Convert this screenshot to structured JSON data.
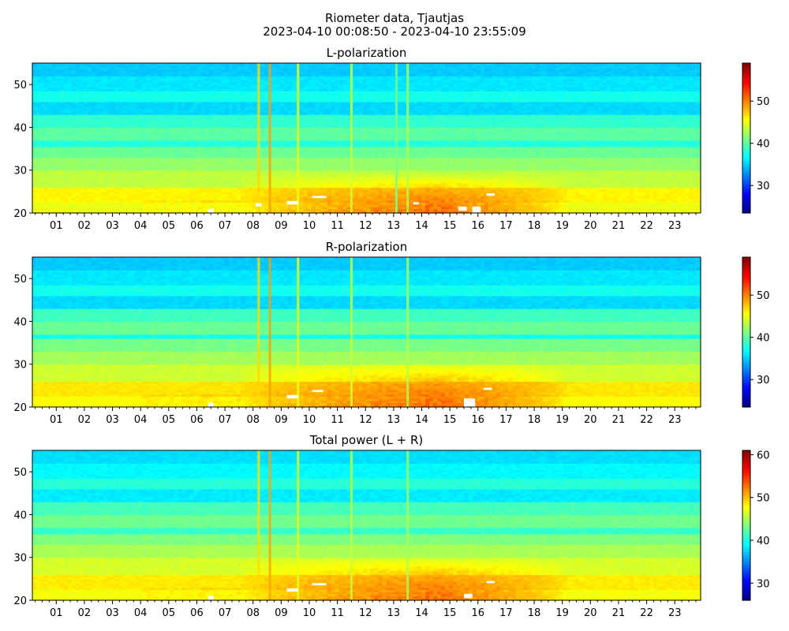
{
  "title": {
    "line1": "Riometer data, Tjautjas",
    "line2": "2023-04-10 00:08:50 - 2023-04-10 23:55:09"
  },
  "colormap": "jet",
  "chart_data": [
    {
      "type": "heatmap",
      "title": "L-polarization",
      "xlabel": "",
      "ylabel": "",
      "x_range_hours": [
        0.15,
        23.92
      ],
      "x_ticks": [
        "01",
        "02",
        "03",
        "04",
        "05",
        "06",
        "07",
        "08",
        "09",
        "10",
        "11",
        "12",
        "13",
        "14",
        "15",
        "16",
        "17",
        "18",
        "19",
        "20",
        "21",
        "22",
        "23"
      ],
      "ylim": [
        20,
        55
      ],
      "y_ticks": [
        20,
        30,
        40,
        50
      ],
      "colorbar": {
        "range": [
          23.5,
          59
        ],
        "ticks": [
          30,
          40,
          50
        ]
      },
      "band_levels": [
        {
          "y_from": 20,
          "y_to": 22.5,
          "value": 45
        },
        {
          "y_from": 22.5,
          "y_to": 26,
          "value": 46
        },
        {
          "y_from": 26,
          "y_to": 30,
          "value": 43.5
        },
        {
          "y_from": 30,
          "y_to": 33,
          "value": 42
        },
        {
          "y_from": 33,
          "y_to": 35.5,
          "value": 40.5
        },
        {
          "y_from": 35.5,
          "y_to": 37,
          "value": 38
        },
        {
          "y_from": 37,
          "y_to": 40,
          "value": 40
        },
        {
          "y_from": 40,
          "y_to": 43,
          "value": 38.5
        },
        {
          "y_from": 43,
          "y_to": 46,
          "value": 35.5
        },
        {
          "y_from": 46,
          "y_to": 48.5,
          "value": 37.5
        },
        {
          "y_from": 48.5,
          "y_to": 52,
          "value": 36
        },
        {
          "y_from": 52,
          "y_to": 55,
          "value": 35
        }
      ],
      "enhancement": {
        "start_h": 7.5,
        "peak_h": 14.5,
        "end_h": 19.2,
        "y_top": 29,
        "peak_value": 51.5
      },
      "spikes": [
        {
          "t": 8.2,
          "value": 47
        },
        {
          "t": 8.6,
          "value": 49
        },
        {
          "t": 9.6,
          "value": 45
        },
        {
          "t": 11.5,
          "value": 44
        },
        {
          "t": 13.1,
          "value": 41
        },
        {
          "t": 13.5,
          "value": 43
        }
      ],
      "gaps": [
        {
          "t0": 6.4,
          "t1": 6.6,
          "y0": 20,
          "y1": 21
        },
        {
          "t0": 8.1,
          "t1": 8.3,
          "y0": 21.5,
          "y1": 22.3
        },
        {
          "t0": 9.2,
          "t1": 9.6,
          "y0": 22,
          "y1": 22.8
        },
        {
          "t0": 10.1,
          "t1": 10.6,
          "y0": 23.5,
          "y1": 24
        },
        {
          "t0": 13.7,
          "t1": 13.9,
          "y0": 22,
          "y1": 22.5
        },
        {
          "t0": 15.3,
          "t1": 15.6,
          "y0": 20.5,
          "y1": 21.5
        },
        {
          "t0": 15.8,
          "t1": 16.1,
          "y0": 20,
          "y1": 21.5
        },
        {
          "t0": 16.3,
          "t1": 16.6,
          "y0": 24,
          "y1": 24.6
        }
      ]
    },
    {
      "type": "heatmap",
      "title": "R-polarization",
      "xlabel": "",
      "ylabel": "",
      "x_range_hours": [
        0.15,
        23.92
      ],
      "x_ticks": [
        "01",
        "02",
        "03",
        "04",
        "05",
        "06",
        "07",
        "08",
        "09",
        "10",
        "11",
        "12",
        "13",
        "14",
        "15",
        "16",
        "17",
        "18",
        "19",
        "20",
        "21",
        "22",
        "23"
      ],
      "ylim": [
        20,
        55
      ],
      "y_ticks": [
        20,
        30,
        40,
        50
      ],
      "colorbar": {
        "range": [
          23.5,
          59
        ],
        "ticks": [
          30,
          40,
          50
        ]
      },
      "band_levels": [
        {
          "y_from": 20,
          "y_to": 22.5,
          "value": 45.5
        },
        {
          "y_from": 22.5,
          "y_to": 26,
          "value": 46.5
        },
        {
          "y_from": 26,
          "y_to": 30,
          "value": 44
        },
        {
          "y_from": 30,
          "y_to": 33,
          "value": 42.5
        },
        {
          "y_from": 33,
          "y_to": 36,
          "value": 41
        },
        {
          "y_from": 36,
          "y_to": 37,
          "value": 37.5
        },
        {
          "y_from": 37,
          "y_to": 40,
          "value": 40.5
        },
        {
          "y_from": 40,
          "y_to": 43,
          "value": 39
        },
        {
          "y_from": 43,
          "y_to": 46,
          "value": 35.5
        },
        {
          "y_from": 46,
          "y_to": 48.5,
          "value": 37.5
        },
        {
          "y_from": 48.5,
          "y_to": 52,
          "value": 36
        },
        {
          "y_from": 52,
          "y_to": 55,
          "value": 35
        }
      ],
      "enhancement": {
        "start_h": 7.5,
        "peak_h": 14.5,
        "end_h": 19.2,
        "y_top": 30,
        "peak_value": 51.5
      },
      "spikes": [
        {
          "t": 8.2,
          "value": 47
        },
        {
          "t": 8.6,
          "value": 49
        },
        {
          "t": 9.6,
          "value": 45
        },
        {
          "t": 11.5,
          "value": 44
        },
        {
          "t": 13.5,
          "value": 43
        }
      ],
      "gaps": [
        {
          "t0": 6.4,
          "t1": 6.6,
          "y0": 20,
          "y1": 21
        },
        {
          "t0": 9.2,
          "t1": 9.6,
          "y0": 22,
          "y1": 22.8
        },
        {
          "t0": 10.1,
          "t1": 10.5,
          "y0": 23.5,
          "y1": 24
        },
        {
          "t0": 15.5,
          "t1": 15.9,
          "y0": 20,
          "y1": 22
        },
        {
          "t0": 16.2,
          "t1": 16.5,
          "y0": 24,
          "y1": 24.5
        }
      ]
    },
    {
      "type": "heatmap",
      "title": "Total power (L + R)",
      "xlabel": "",
      "ylabel": "",
      "x_range_hours": [
        0.15,
        23.92
      ],
      "x_ticks": [
        "01",
        "02",
        "03",
        "04",
        "05",
        "06",
        "07",
        "08",
        "09",
        "10",
        "11",
        "12",
        "13",
        "14",
        "15",
        "16",
        "17",
        "18",
        "19",
        "20",
        "21",
        "22",
        "23"
      ],
      "ylim": [
        20,
        55
      ],
      "y_ticks": [
        20,
        30,
        40,
        50
      ],
      "colorbar": {
        "range": [
          26,
          61
        ],
        "ticks": [
          30,
          40,
          50,
          60
        ]
      },
      "band_levels": [
        {
          "y_from": 20,
          "y_to": 22.5,
          "value": 47.5
        },
        {
          "y_from": 22.5,
          "y_to": 26,
          "value": 48.5
        },
        {
          "y_from": 26,
          "y_to": 30,
          "value": 46.5
        },
        {
          "y_from": 30,
          "y_to": 33,
          "value": 45
        },
        {
          "y_from": 33,
          "y_to": 35.5,
          "value": 43.5
        },
        {
          "y_from": 35.5,
          "y_to": 37,
          "value": 41
        },
        {
          "y_from": 37,
          "y_to": 40,
          "value": 43
        },
        {
          "y_from": 40,
          "y_to": 43,
          "value": 41.5
        },
        {
          "y_from": 43,
          "y_to": 46,
          "value": 38.5
        },
        {
          "y_from": 46,
          "y_to": 48.5,
          "value": 40.5
        },
        {
          "y_from": 48.5,
          "y_to": 52,
          "value": 39
        },
        {
          "y_from": 52,
          "y_to": 55,
          "value": 38
        }
      ],
      "enhancement": {
        "start_h": 7.5,
        "peak_h": 14.5,
        "end_h": 19.2,
        "y_top": 29.5,
        "peak_value": 53.5
      },
      "spikes": [
        {
          "t": 8.2,
          "value": 49
        },
        {
          "t": 8.6,
          "value": 51
        },
        {
          "t": 9.6,
          "value": 47
        },
        {
          "t": 11.5,
          "value": 46
        },
        {
          "t": 13.5,
          "value": 45
        }
      ],
      "gaps": [
        {
          "t0": 6.4,
          "t1": 6.6,
          "y0": 20,
          "y1": 21
        },
        {
          "t0": 9.2,
          "t1": 9.6,
          "y0": 22,
          "y1": 22.8
        },
        {
          "t0": 10.1,
          "t1": 10.6,
          "y0": 23.5,
          "y1": 24
        },
        {
          "t0": 15.5,
          "t1": 15.8,
          "y0": 20.5,
          "y1": 21.5
        },
        {
          "t0": 16.3,
          "t1": 16.6,
          "y0": 24,
          "y1": 24.5
        }
      ]
    }
  ]
}
